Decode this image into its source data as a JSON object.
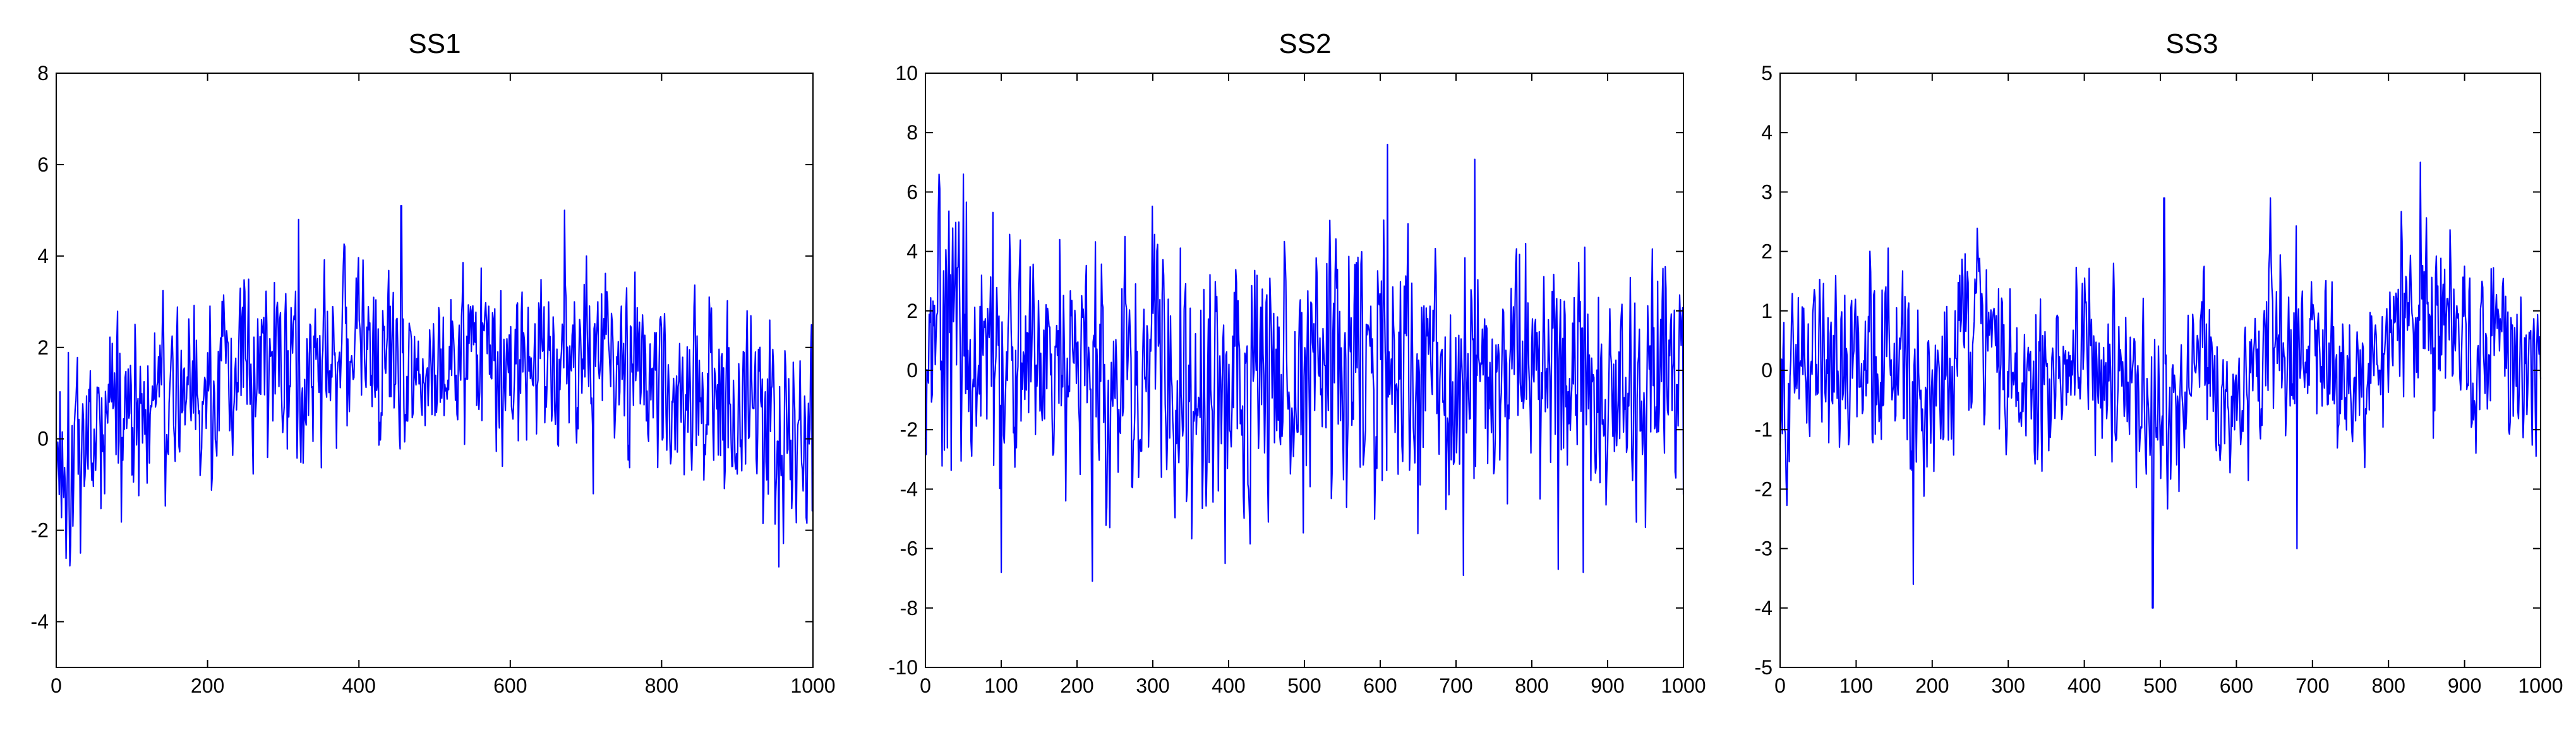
{
  "chart_data": [
    {
      "type": "line",
      "title": "SS1",
      "xlabel": "",
      "ylabel": "",
      "xlim": [
        0,
        1000
      ],
      "ylim": [
        -5,
        8
      ],
      "xticks": [
        0,
        200,
        400,
        600,
        800,
        1000
      ],
      "yticks": [
        -4,
        -2,
        0,
        2,
        4,
        6,
        8
      ],
      "grid": false,
      "legend": "none",
      "line_color": "#0000ff",
      "n_points": 1000,
      "series": [
        {
          "x": [
            0,
            50,
            100,
            150,
            200,
            250,
            300,
            350,
            400,
            450,
            500,
            550,
            600,
            650,
            700,
            750,
            800,
            850,
            900,
            950,
            1000
          ],
          "values": [
            -0.3,
            0.3,
            0.8,
            1.0,
            1.0,
            1.5,
            1.7,
            1.9,
            2.0,
            2.0,
            1.9,
            1.9,
            1.9,
            1.9,
            1.8,
            1.7,
            1.5,
            1.2,
            0.8,
            0.3,
            0.0
          ],
          "spread": [
            1.0,
            1.0,
            0.9,
            0.9,
            0.9,
            0.9,
            0.9,
            0.9,
            0.9,
            0.9,
            0.9,
            0.9,
            0.9,
            0.9,
            0.9,
            0.9,
            0.9,
            0.9,
            1.0,
            1.0,
            1.0
          ],
          "extremes": [
            [
              32,
              -2.5
            ],
            [
              320,
              4.8
            ],
            [
              456,
              5.1
            ],
            [
              672,
              5.0
            ],
            [
              710,
              -1.2
            ],
            [
              955,
              -2.8
            ]
          ]
        }
      ]
    },
    {
      "type": "line",
      "title": "SS2",
      "xlabel": "",
      "ylabel": "",
      "xlim": [
        0,
        1000
      ],
      "ylim": [
        -10,
        10
      ],
      "xticks": [
        0,
        100,
        200,
        300,
        400,
        500,
        600,
        700,
        800,
        900,
        1000
      ],
      "yticks": [
        -10,
        -8,
        -6,
        -4,
        -2,
        0,
        2,
        4,
        6,
        8,
        10
      ],
      "grid": false,
      "legend": "none",
      "line_color": "#0000ff",
      "n_points": 1000,
      "series": [
        {
          "x": [
            0,
            50,
            100,
            150,
            200,
            250,
            300,
            350,
            400,
            450,
            500,
            550,
            600,
            650,
            700,
            750,
            800,
            850,
            900,
            950,
            1000
          ],
          "values": [
            1.0,
            1.0,
            0.5,
            0.0,
            0.0,
            -0.5,
            0.0,
            0.0,
            -0.5,
            0.0,
            0.0,
            0.5,
            0.5,
            0.0,
            0.0,
            -0.5,
            0.0,
            0.0,
            -0.5,
            0.0,
            0.0
          ],
          "spread": [
            2.0,
            2.3,
            2.1,
            1.9,
            2.0,
            2.0,
            1.9,
            1.9,
            2.0,
            1.9,
            1.9,
            2.0,
            2.2,
            2.0,
            2.0,
            2.0,
            1.9,
            2.0,
            1.9,
            1.9,
            2.0
          ],
          "extremes": [
            [
              50,
              6.6
            ],
            [
              100,
              -6.8
            ],
            [
              220,
              -7.1
            ],
            [
              395,
              -6.5
            ],
            [
              610,
              7.6
            ],
            [
              650,
              -5.5
            ],
            [
              710,
              -6.9
            ],
            [
              725,
              7.1
            ],
            [
              835,
              -6.7
            ],
            [
              868,
              -6.8
            ]
          ]
        }
      ]
    },
    {
      "type": "line",
      "title": "SS3",
      "xlabel": "",
      "ylabel": "",
      "xlim": [
        0,
        1000
      ],
      "ylim": [
        -5,
        5
      ],
      "xticks": [
        0,
        100,
        200,
        300,
        400,
        500,
        600,
        700,
        800,
        900,
        1000
      ],
      "yticks": [
        -5,
        -4,
        -3,
        -2,
        -1,
        0,
        1,
        2,
        3,
        4,
        5
      ],
      "grid": false,
      "legend": "none",
      "line_color": "#0000ff",
      "n_points": 1000,
      "series": [
        {
          "x": [
            0,
            50,
            100,
            150,
            200,
            250,
            300,
            350,
            400,
            450,
            500,
            550,
            600,
            650,
            700,
            750,
            800,
            850,
            900,
            950,
            1000
          ],
          "values": [
            -0.5,
            0.3,
            0.3,
            0.0,
            -0.5,
            0.8,
            0.0,
            -0.5,
            0.5,
            -0.2,
            -1.2,
            0.3,
            -0.8,
            0.8,
            0.3,
            -0.5,
            0.5,
            1.0,
            0.5,
            0.3,
            0.0
          ],
          "spread": [
            0.8,
            0.7,
            0.7,
            0.7,
            0.7,
            0.7,
            0.7,
            0.7,
            0.7,
            0.7,
            0.8,
            0.7,
            0.6,
            0.8,
            0.7,
            0.6,
            0.7,
            0.8,
            0.7,
            0.7,
            0.7
          ],
          "extremes": [
            [
              175,
              -3.6
            ],
            [
              490,
              -4.0
            ],
            [
              505,
              2.9
            ],
            [
              645,
              2.9
            ],
            [
              680,
              -3.0
            ],
            [
              842,
              3.5
            ]
          ]
        }
      ]
    }
  ]
}
